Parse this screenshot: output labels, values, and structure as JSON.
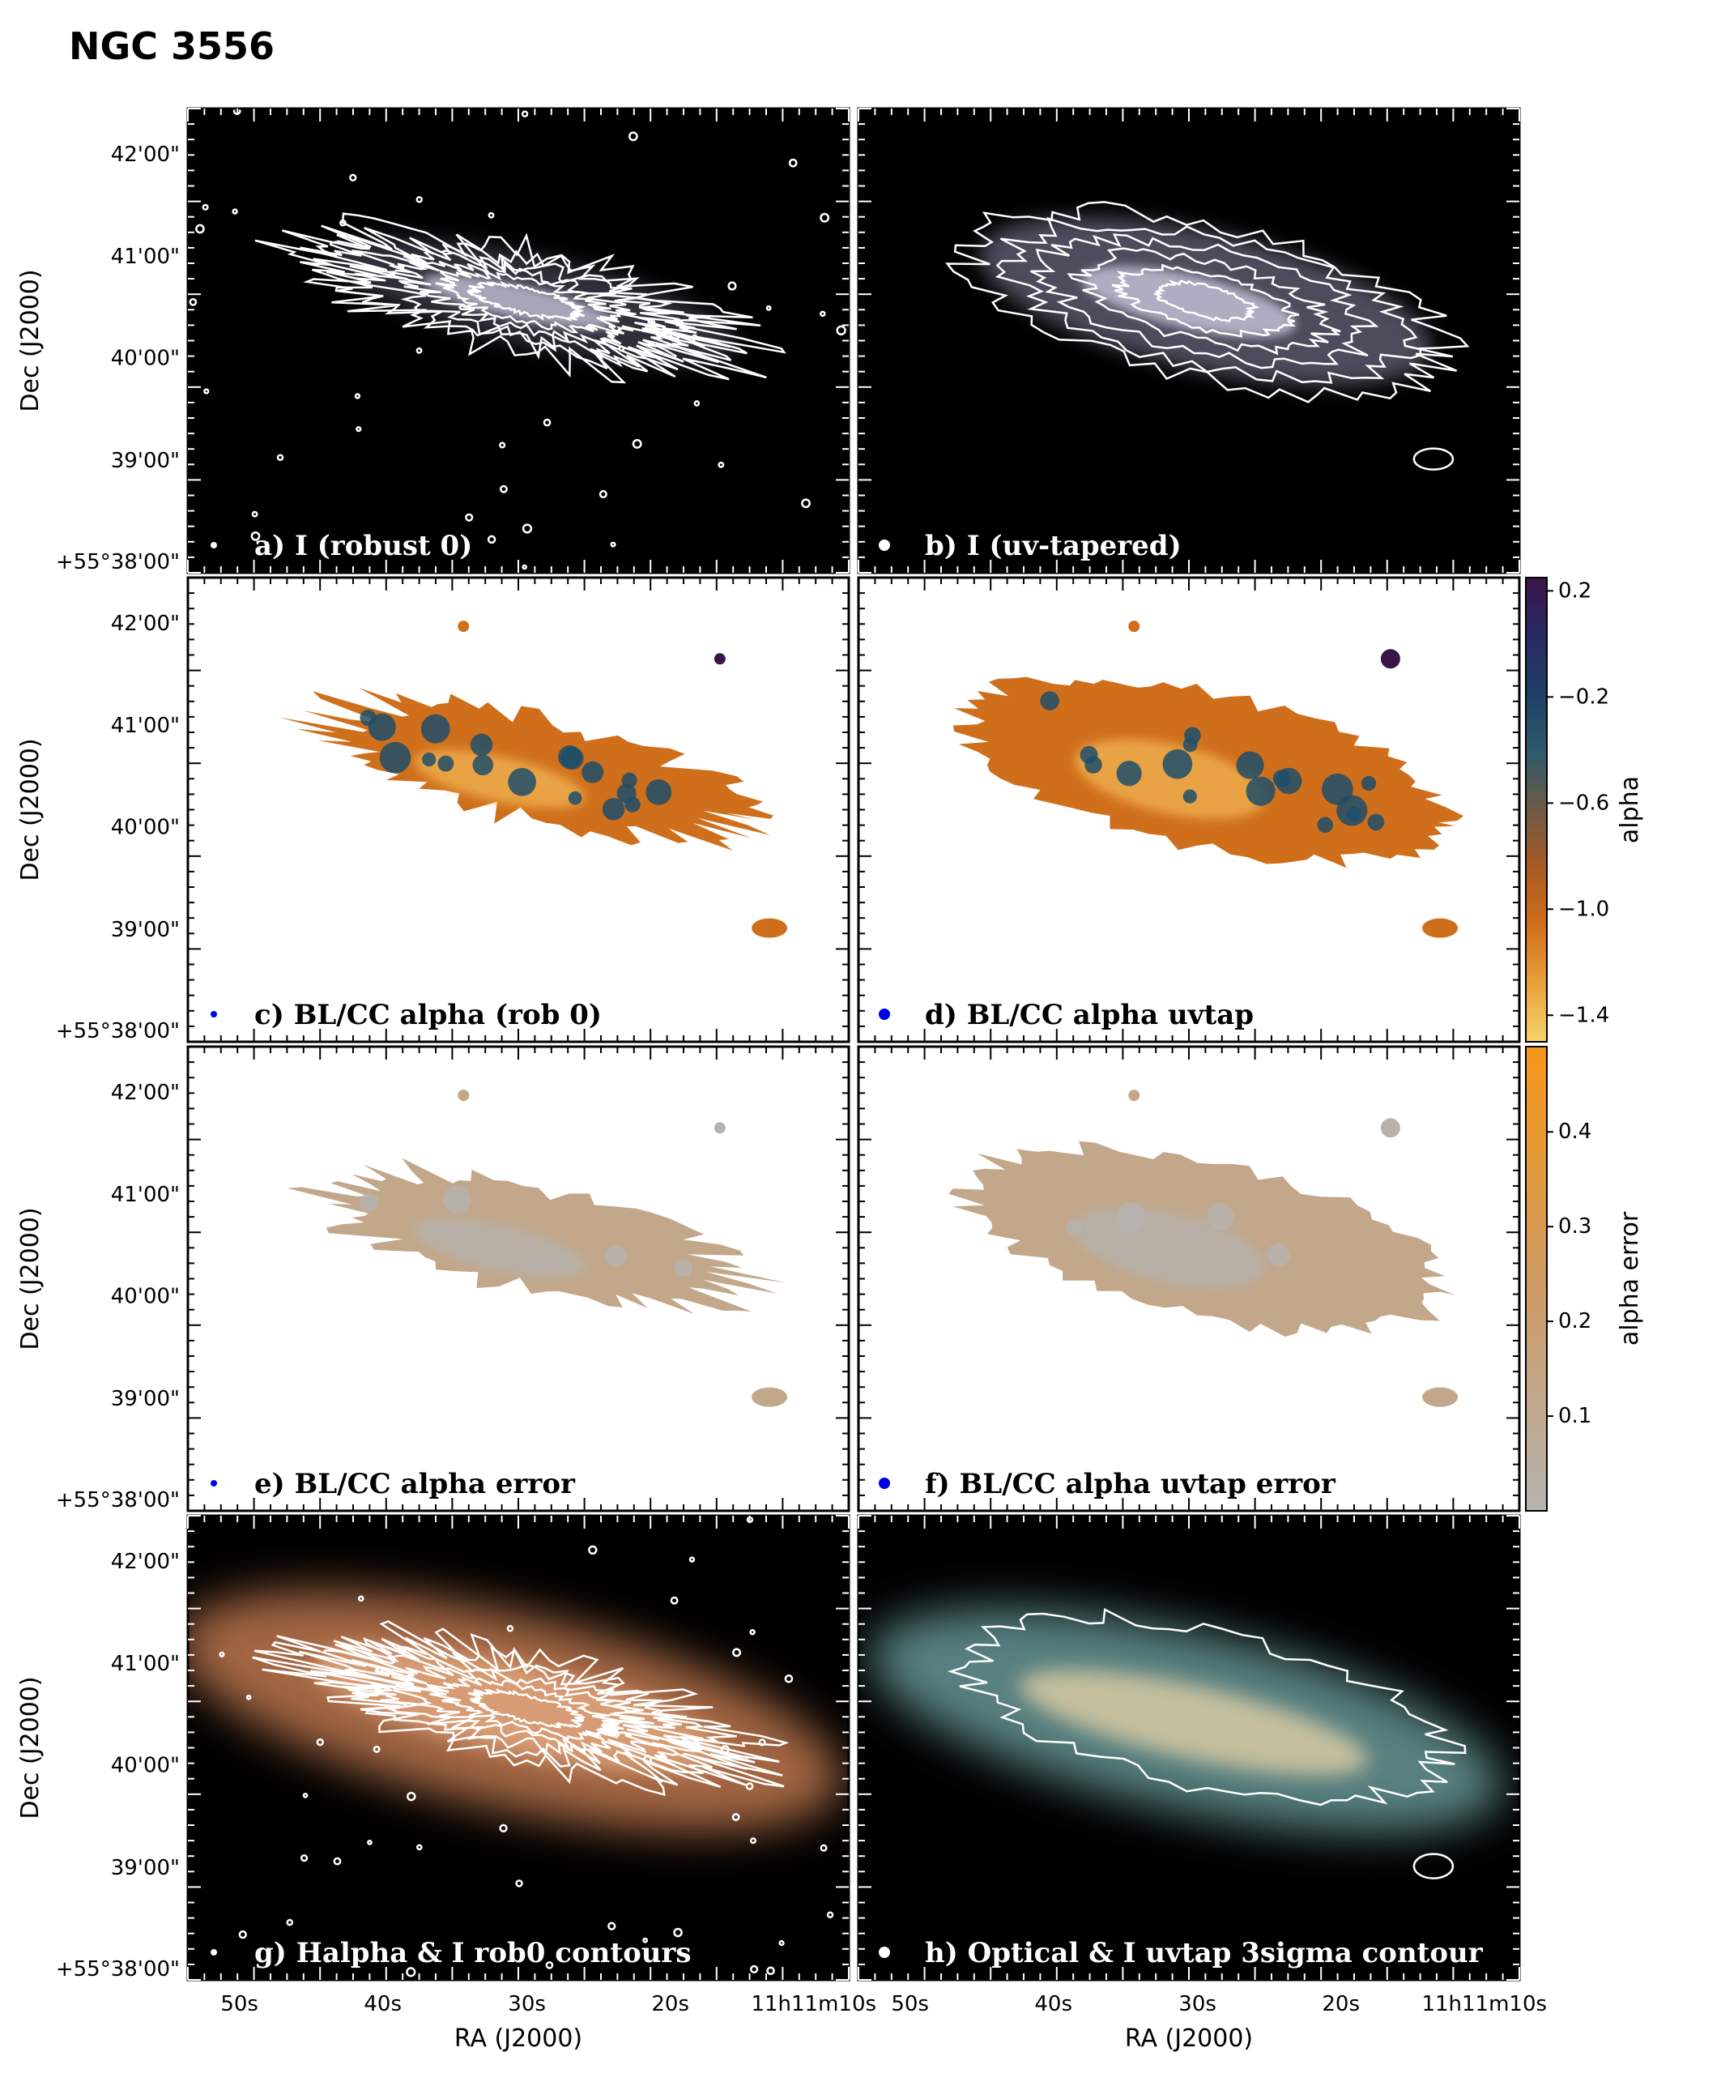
{
  "title": "NGC 3556",
  "xlabel": "RA (J2000)",
  "ylabel": "Dec (J2000)",
  "x_tick_labels": [
    "50s",
    "40s",
    "30s",
    "20s",
    "11h11m10s"
  ],
  "y_tick_labels": [
    "42'00\"",
    "41'00\"",
    "40'00\"",
    "39'00\"",
    "+55°38'00\""
  ],
  "panels": [
    {
      "id": "a",
      "label": "a) I (robust 0)",
      "kind": "intensity",
      "contours": "dense",
      "beam": "small"
    },
    {
      "id": "b",
      "label": "b) I (uv-tapered)",
      "kind": "intensity-tapered",
      "contours": "smooth",
      "beam": "large"
    },
    {
      "id": "c",
      "label": "c) BL/CC alpha (rob 0)",
      "kind": "alpha",
      "contours": "none",
      "beam": "small"
    },
    {
      "id": "d",
      "label": "d) BL/CC alpha uvtap",
      "kind": "alpha-tapered",
      "contours": "none",
      "beam": "large"
    },
    {
      "id": "e",
      "label": "e)  BL/CC alpha error",
      "kind": "alpha-error",
      "contours": "none",
      "beam": "small"
    },
    {
      "id": "f",
      "label": "f) BL/CC alpha uvtap error",
      "kind": "alpha-error-tapered",
      "contours": "none",
      "beam": "large"
    },
    {
      "id": "g",
      "label": "g) Halpha & I rob0 contours",
      "kind": "halpha",
      "contours": "dense",
      "beam": "small"
    },
    {
      "id": "h",
      "label": "h) Optical & I uvtap 3sigma contour",
      "kind": "optical",
      "contours": "single",
      "beam": "large"
    }
  ],
  "colorbars": [
    {
      "label": "alpha",
      "ticks": [
        "0.2",
        "−0.2",
        "−0.6",
        "−1.0",
        "−1.4"
      ],
      "tick_values": [
        0.2,
        -0.2,
        -0.6,
        -1.0,
        -1.4
      ],
      "range": [
        -1.5,
        0.25
      ],
      "colors": [
        "#f7d36a",
        "#e8a03a",
        "#cf6f1c",
        "#a85a22",
        "#6d5a48",
        "#2e5a6a",
        "#1e3f66",
        "#2a2a63",
        "#3a1548"
      ]
    },
    {
      "label": "alpha error",
      "ticks": [
        "0.4",
        "0.3",
        "0.2",
        "0.1"
      ],
      "tick_values": [
        0.4,
        0.3,
        0.2,
        0.1
      ],
      "range": [
        0.0,
        0.49
      ],
      "colors": [
        "#b6b3ae",
        "#c2a78a",
        "#cf9a62",
        "#e39a3a",
        "#f7971c"
      ]
    }
  ],
  "chart_data": {
    "type": "heatmap",
    "title": "NGC 3556",
    "xlabel": "RA (J2000)",
    "ylabel": "Dec (J2000)",
    "x_ticks": [
      "50s",
      "40s",
      "30s",
      "20s",
      "11h11m10s"
    ],
    "y_ticks": [
      "42'00\"",
      "41'00\"",
      "40'00\"",
      "39'00\"",
      "+55°38'00\""
    ],
    "alpha_colorbar": {
      "label": "alpha",
      "ticks": [
        0.2,
        -0.2,
        -0.6,
        -1.0,
        -1.4
      ]
    },
    "alpha_error_colorbar": {
      "label": "alpha error",
      "ticks": [
        0.4,
        0.3,
        0.2,
        0.1
      ]
    }
  },
  "colors": {
    "intensity_bg": "#000000",
    "contour": "#ffffff",
    "beam_blue": "#0000e6",
    "halpha": "#d9885a",
    "optical_core": "#e8d4a8",
    "optical_halo": "#7fb8b8"
  }
}
